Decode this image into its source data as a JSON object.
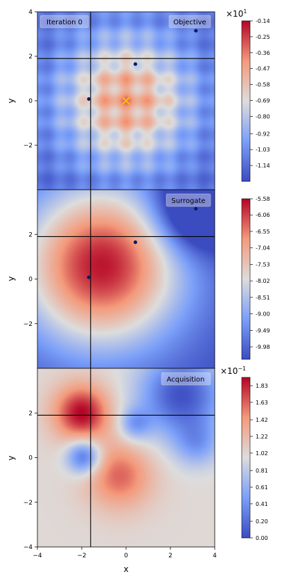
{
  "colors": {
    "cmap_low": "#3b4cc0",
    "cmap_mid": "#dddddd",
    "cmap_high": "#b40426",
    "points": "#0b1a5e",
    "best_marker": "#f2c200",
    "crosshair": "#000000"
  },
  "chart_data": [
    {
      "type": "heatmap",
      "panel": "objective",
      "box_labels": [
        "Iteration 0",
        "Objective"
      ],
      "ylabel": "y",
      "xlim": [
        -4,
        4
      ],
      "ylim": [
        -4,
        4
      ],
      "yticks": [
        "4",
        "2",
        "0",
        "−2"
      ],
      "crosshair": {
        "x": -1.6,
        "y": 1.9
      },
      "points": [
        {
          "x": 3.15,
          "y": 3.15
        },
        {
          "x": 0.42,
          "y": 1.65
        },
        {
          "x": -1.68,
          "y": 0.08
        }
      ],
      "best": {
        "x": 0.0,
        "y": 0.0
      },
      "colorbar": {
        "min": -1.25,
        "max": -0.14,
        "exponent_label": "×10",
        "exponent": "1",
        "ticks": [
          "-0.14",
          "-0.25",
          "-0.36",
          "-0.47",
          "-0.58",
          "-0.69",
          "-0.80",
          "-0.92",
          "-1.03",
          "-1.14"
        ],
        "tick_values": [
          -0.14,
          -0.25,
          -0.36,
          -0.47,
          -0.58,
          -0.69,
          -0.8,
          -0.92,
          -1.03,
          -1.14
        ]
      }
    },
    {
      "type": "heatmap",
      "panel": "surrogate",
      "box_labels": [
        "Surrogate"
      ],
      "ylabel": "y",
      "xlim": [
        -4,
        4
      ],
      "ylim": [
        -4,
        4
      ],
      "yticks": [
        "2",
        "0",
        "−2"
      ],
      "crosshair": {
        "x": -1.6,
        "y": 1.9
      },
      "points": [
        {
          "x": 3.15,
          "y": 3.15
        },
        {
          "x": 0.42,
          "y": 1.65
        },
        {
          "x": -1.68,
          "y": 0.08
        }
      ],
      "colorbar": {
        "min": -10.35,
        "max": -5.58,
        "ticks": [
          "-5.58",
          "-6.06",
          "-6.55",
          "-7.04",
          "-7.53",
          "-8.02",
          "-8.51",
          "-9.00",
          "-9.49",
          "-9.98"
        ],
        "tick_values": [
          -5.58,
          -6.06,
          -6.55,
          -7.04,
          -7.53,
          -8.02,
          -8.51,
          -9.0,
          -9.49,
          -9.98
        ]
      }
    },
    {
      "type": "heatmap",
      "panel": "acquisition",
      "box_labels": [
        "Acquisition"
      ],
      "xlabel": "x",
      "ylabel": "y",
      "xlim": [
        -4,
        4
      ],
      "ylim": [
        -4,
        4
      ],
      "xticks": [
        "−4",
        "−2",
        "0",
        "2",
        "4"
      ],
      "yticks": [
        "2",
        "0",
        "−2",
        "−4"
      ],
      "crosshair": {
        "x": -1.6,
        "y": 1.9
      },
      "colorbar": {
        "min": 0.0,
        "max": 1.93,
        "exponent_label": "×10",
        "exponent": "−1",
        "ticks": [
          "0.00",
          "0.20",
          "0.41",
          "0.61",
          "0.81",
          "1.02",
          "1.22",
          "1.42",
          "1.63",
          "1.83"
        ],
        "tick_values": [
          0.0,
          0.2,
          0.41,
          0.61,
          0.81,
          1.02,
          1.22,
          1.42,
          1.63,
          1.83
        ]
      }
    }
  ]
}
